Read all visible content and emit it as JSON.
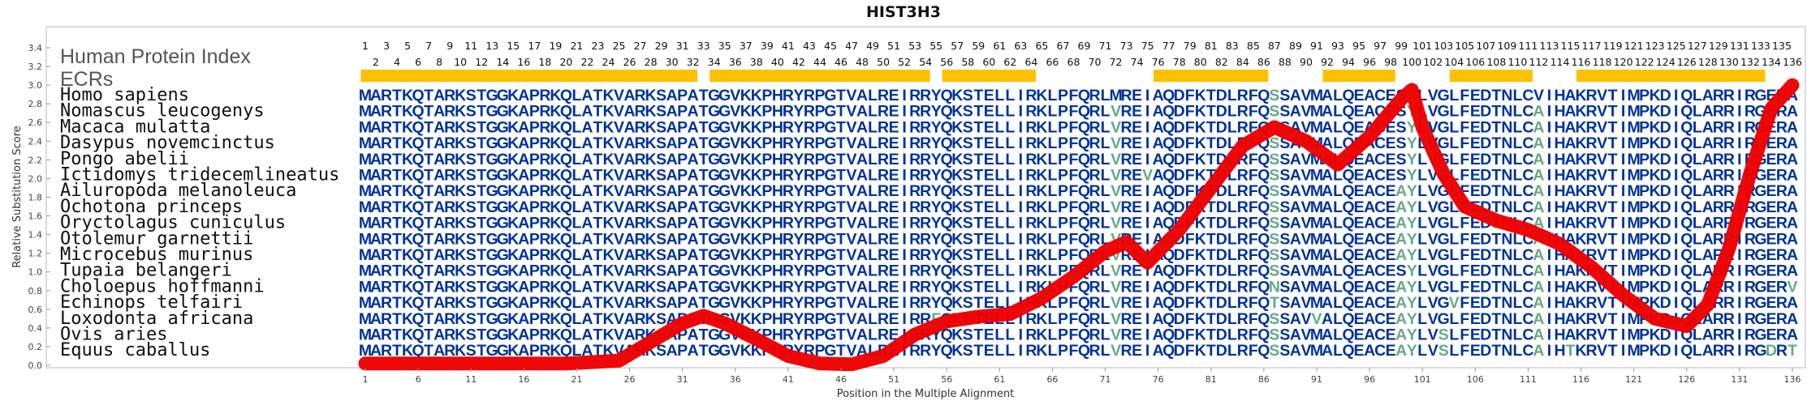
{
  "chart_data": {
    "type": "line",
    "title": "HIST3H3",
    "xlabel": "Position in the Multiple Alignment",
    "ylabel": "Relative Substitution Score",
    "xlim": [
      1,
      136
    ],
    "ylim": [
      0.0,
      3.4
    ],
    "y_ticks": [
      "0.0",
      "0.2",
      "0.4",
      "0.6",
      "0.8",
      "1.0",
      "1.2",
      "1.4",
      "1.6",
      "1.8",
      "2.0",
      "2.2",
      "2.4",
      "2.6",
      "2.8",
      "3.0",
      "3.2",
      "3.4"
    ],
    "x_ticks": [
      "1",
      "6",
      "11",
      "16",
      "21",
      "26",
      "31",
      "36",
      "41",
      "46",
      "51",
      "56",
      "61",
      "66",
      "71",
      "76",
      "81",
      "86",
      "91",
      "96",
      "101",
      "106",
      "111",
      "116",
      "121",
      "126",
      "131",
      "136"
    ],
    "grid": false,
    "series": [
      {
        "x": [
          1,
          5,
          10,
          15,
          20,
          25,
          28,
          31,
          33,
          35,
          38,
          41,
          44,
          47,
          50,
          53,
          56,
          59,
          62,
          65,
          68,
          71,
          73,
          75,
          78,
          81,
          84,
          87,
          90,
          93,
          96,
          99,
          100,
          101,
          103,
          105,
          108,
          111,
          114,
          117,
          120,
          123,
          126,
          128,
          130,
          132,
          134,
          136
        ],
        "y": [
          0.02,
          0.02,
          0.02,
          0.02,
          0.02,
          0.05,
          0.25,
          0.45,
          0.53,
          0.45,
          0.28,
          0.1,
          0.02,
          0.01,
          0.1,
          0.33,
          0.47,
          0.52,
          0.55,
          0.72,
          0.95,
          1.22,
          1.32,
          1.1,
          1.45,
          1.9,
          2.35,
          2.55,
          2.4,
          2.15,
          2.45,
          2.85,
          2.95,
          2.55,
          2.05,
          1.7,
          1.55,
          1.45,
          1.3,
          1.05,
          0.75,
          0.5,
          0.42,
          0.65,
          1.25,
          2.05,
          2.75,
          3.0
        ],
        "color": "#ee0000"
      }
    ],
    "column_numbers_top": [
      "1",
      "3",
      "5",
      "7",
      "9",
      "11",
      "13",
      "15",
      "17",
      "19",
      "21",
      "23",
      "25",
      "27",
      "29",
      "31",
      "33",
      "35",
      "37",
      "39",
      "41",
      "43",
      "45",
      "47",
      "49",
      "51",
      "53",
      "55",
      "57",
      "59",
      "61",
      "63",
      "65",
      "67",
      "69",
      "71",
      "73",
      "75",
      "77",
      "79",
      "81",
      "83",
      "85",
      "87",
      "89",
      "91",
      "93",
      "95",
      "97",
      "99",
      "101",
      "103",
      "105",
      "107",
      "109",
      "111",
      "113",
      "115",
      "117",
      "119",
      "121",
      "123",
      "125",
      "127",
      "129",
      "131",
      "133",
      "135"
    ],
    "column_numbers_bottom": [
      "2",
      "4",
      "6",
      "8",
      "10",
      "12",
      "14",
      "16",
      "18",
      "20",
      "22",
      "24",
      "26",
      "28",
      "30",
      "32",
      "34",
      "36",
      "38",
      "40",
      "42",
      "44",
      "46",
      "48",
      "50",
      "52",
      "54",
      "56",
      "58",
      "60",
      "62",
      "64",
      "66",
      "68",
      "70",
      "72",
      "74",
      "76",
      "78",
      "80",
      "82",
      "84",
      "86",
      "88",
      "90",
      "92",
      "94",
      "96",
      "98",
      "100",
      "102",
      "104",
      "106",
      "108",
      "110",
      "112",
      "114",
      "116",
      "118",
      "120",
      "122",
      "124",
      "126",
      "128",
      "130",
      "132",
      "134",
      "136"
    ],
    "header_label": "Human Protein Index",
    "ecr_label": "ECRs",
    "ecr_ranges": [
      [
        1,
        32
      ],
      [
        34,
        54
      ],
      [
        56,
        64
      ],
      [
        76,
        86
      ],
      [
        92,
        98
      ],
      [
        104,
        111
      ],
      [
        116,
        133
      ]
    ],
    "ecr_color": "#ffc000",
    "sequence_color": "#003399",
    "variant_color": "#66aa88",
    "line_color": "#ee0000",
    "species": [
      {
        "name": "Homo sapiens",
        "seq": "MARTKQTARKSTGGKAPRKQLATKVARKSAPATGGVKKPHRYRPGTVALREIRRYQKSTELLIRKLPFQRLMREIAQDFKTDLRFQSSAVMALQEACESYLVGLFEDTNLCVIHAKRVTIMPKDIQLARRIRGERA"
      },
      {
        "name": "Nomascus leucogenys",
        "seq": "MARTKQTARKSTGGKAPRKQLATKVARKSAPATGGVKKPHRYRPGTVALREIRRYQKSTELLIRKLPFQRLVREIAQDFKTDLRFQSSAVMALQEACESYLVGLFEDTNLCAIHAKRVTIMPKDIQLARRIRGERA"
      },
      {
        "name": "Macaca mulatta",
        "seq": "MARTKQTARKSTGGKAPRKQLATKVARKSAPATGGVKKPHRYRPGTVALREIRRYQKSTELLIRKLPFQRLVREIAQDFKTDLRFQSSAVMALQEACESYLVGLFEDTNLCAIHAKRVTIMPKDIQLARRIRGERA"
      },
      {
        "name": "Dasypus novemcinctus",
        "seq": "MARTKQTARKSTGGKAPRKQLATKVARKSAPATGGVKKPHRYRPGTVALREIRRYQKSTELLIRKLPFQRLVREIAQDFKTDLRFQSSAVMALQEACESYLVGLFEDTNLCAIHAKRVTIMPKDIQLARRIRGERA"
      },
      {
        "name": "Pongo abelii",
        "seq": "MARTKQTARKSTGGKAPRKQLATKVARKSAPATGGVKKPHRYRPGTVALREIRRYQKSTELLIRKLPFQRLVREIAQDFKTDLRFQSSAVMALQEACESYLVGLFEDTNLCAIHAKRVTIMPKDIQLARRIRGERA"
      },
      {
        "name": "Ictidomys tridecemlineatus",
        "seq": "MARTKQTARKSTGGKAPRKQLATKVARKSAPATGGVKKPHRYRPGTVALREIRRYQKSTELLIRKLPFQRLVREVAQDFKTDLRFQSSAVMALQEACESYLVGLFEDTNLCAIHAKRVTIMPKDIQLARRIRGERA"
      },
      {
        "name": "Ailuropoda melanoleuca",
        "seq": "MARTKQTARKSTGGKAPRKQLATKVARKSAPATGGVKKPHRYRPGTVALREIRRYQKSTELLIRKLPFQRLVREIAQDFKTDLRFQSSAVMALQEACEAYLVGLFEDTNLCAIHAKRVTIMPKDIQLARRIRGERA"
      },
      {
        "name": "Ochotona princeps",
        "seq": "MARTKQTARKSTGGKAPRKQLATKVARKSAPATGGVKKPHRYRPGTVALREIRRYQKSTELLIRKLPFQRLVREIAQDFKTDLRFQSSAVMALQEACEAYLVGLFEDTNLCAIHAKRVTIMPKDIQLARRIRGERA"
      },
      {
        "name": "Oryctolagus cuniculus",
        "seq": "MARTKQTARKSTGGKAPRKQLATKVARKSAPATGGVKKPHRYRPGTVALREIRRYQKSTELLIRKLPFQRLVREIAQDFKTDLRFQSSAVMALQEACEAYLVGLFEDTNLCAIHAKRVTIMPKDIQLARRIRGERA"
      },
      {
        "name": "Otolemur garnettii",
        "seq": "MARTKQTARKSTGGKAPRKQLATKVARKSAPATGGVKKPHRYRPGTVALREIRRYQKSTELLIRKLPFQRLVREIAQDFKTDLRFQSSAVMALQEACEAYLVGLFEDTNLCAIHAKRVTIMPKDIQLARRIRGERA"
      },
      {
        "name": "Microcebus murinus",
        "seq": "MARTKQTARKSTGGKAPRKQLATKVARKSAPATGGVKKPHRYRPGTVALREIRRYQKSTELLIRKLPFQRLVREIAQDFKTDLRFQSSAVMALQEACEAYLVGLFEDTNLCAIHAKRVTIMPKDIQLARRIRGERA"
      },
      {
        "name": "Tupaia belangeri",
        "seq": "MARTKQTARKSTGGKAPRKQLATKVARKSAPATGGVKKPHRYRPGTVALREIRRYQKSTELLIRKLPFQRLVREIAQDFKTDLRFQSSAVMALQEACESYLVGLFEDTNLCAIHAKRVTIMPKDIQLARRIRGERA"
      },
      {
        "name": "Choloepus hoffmanni",
        "seq": "MARTKQTARKSTGGKAPRKQLATKVARKSAPATGGVKKPHRYRPGTVALREIRRYQKSTELLIRKLPFQRLVREIAQDFKTDLRFQNSAVMALQEACEAYLVGLFEDTNLCAIHAKRVTIMPKDIQLARRIRGERV"
      },
      {
        "name": "Echinops telfairi",
        "seq": "MARTKQTARKSTGGKAPRKQLATKVARKSAPATGGVKKPHRYRPGTVALREIRRYQKSTELLIRKLPFQRLVREIAQDFKTDLRFQTSAVMALQEACEAYLVGVFEDTNLCAIHAKRVTIMPKDIQLARRIRGERA"
      },
      {
        "name": "Loxodonta africana",
        "seq": "MARTKQTARKSTGGKAPRKQLATKVARKSAPATGGVKKPHRYRPGTVALREIRRFQKSTELLIRKLPFQRLVREIAQDFKTDLRFQSSAVVALQEACEAYLVGLFEDTNLCAIHAKRVTIMPKDIQLARRIRGERA"
      },
      {
        "name": "Ovis aries",
        "seq": "MARTKQTARKSTGGKAPRKQLATKVARKSAPATGGVKKPHRYRPGTVALREIRRYQKSTELLIRKLPFQRLVREIAQDFKTDLRFQSSAVMALQEACEAYLVSLFEDTNLCAIHAKRVTIMPKDIQLARRIRGERA"
      },
      {
        "name": "Equus caballus",
        "seq": "MARTKQTARKSTGGKAPRKQLATKVARKSAPATGGVKKPHRYRPGTVALREIRRYQKSTELLIRKLPFQRLVREIAQDFKTDLRFQSSAVMALQEACEAYLVSLFEDTNLCAIHTKRVTIMPKDIQLARRIRGDRT"
      }
    ]
  }
}
